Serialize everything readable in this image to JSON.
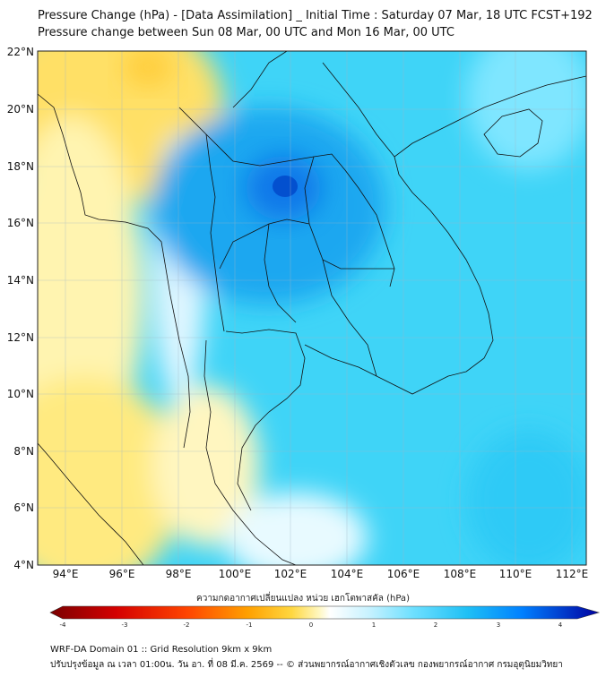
{
  "titles": {
    "line1": "Pressure Change (hPa) - [Data Assimilation] _ Initial Time : Saturday 07 Mar, 18 UTC FCST+192",
    "line2": "Pressure change between Sun 08 Mar, 00 UTC and Mon 16 Mar, 00 UTC"
  },
  "axes": {
    "lat_labels": [
      "22°N",
      "20°N",
      "18°N",
      "16°N",
      "14°N",
      "12°N",
      "10°N",
      "8°N",
      "6°N",
      "4°N"
    ],
    "lon_labels": [
      "94°E",
      "96°E",
      "98°E",
      "100°E",
      "102°E",
      "104°E",
      "106°E",
      "108°E",
      "110°E",
      "112°E"
    ],
    "lat_range": [
      4,
      22
    ],
    "lon_range": [
      93,
      112.5
    ]
  },
  "colorbar": {
    "title": "ความกดอากาศเปลี่ยนแปลง หน่วย เฮกโตพาสคัล (hPa)",
    "ticks": [
      "-4",
      "-3",
      "-2",
      "-1",
      "0",
      "1",
      "2",
      "3",
      "4"
    ],
    "min": -4,
    "max": 4,
    "colors": [
      "#7a0000",
      "#cc0000",
      "#ff3300",
      "#ff8c00",
      "#ffc000",
      "#ffe680",
      "#ffffff",
      "#bff0ff",
      "#5adcff",
      "#12b8f5",
      "#0066ff",
      "#0000b0"
    ]
  },
  "footer": {
    "line1": "WRF-DA Domain 01 :: Grid Resolution 9km x 9km",
    "line2": "ปรับปรุงข้อมูล ณ เวลา 01:00น. วัน อา. ที่ 08 มี.ค. 2569 -- © ส่วนพยากรณ์อากาศเชิงตัวเลข กองพยากรณ์อากาศ กรมอุตุนิยมวิทยา"
  }
}
